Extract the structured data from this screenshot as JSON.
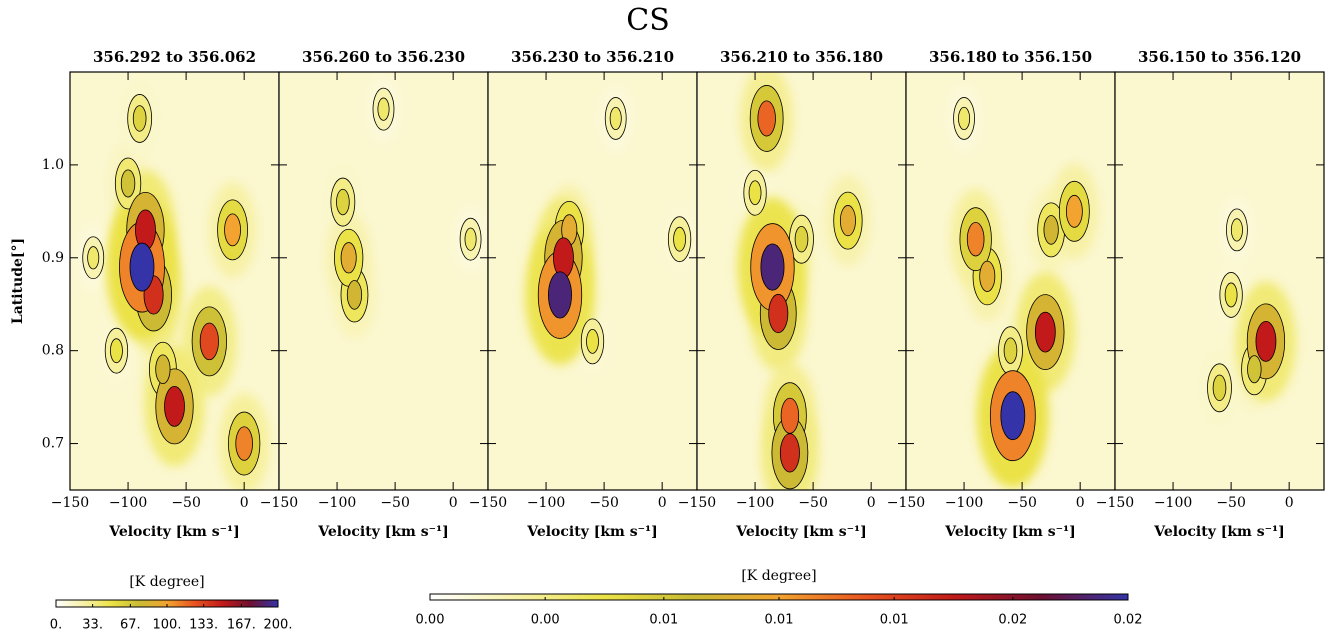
{
  "chart_data": {
    "type": "contour",
    "title": "CS",
    "xlabel": "Velocity [km s⁻¹]",
    "ylabel": "Latitude[°]",
    "xlim": [
      -150,
      30
    ],
    "ylim": [
      0.65,
      1.1
    ],
    "xticks": [
      {
        "value": -150,
        "label": "−150"
      },
      {
        "value": -100,
        "label": "−100"
      },
      {
        "value": -50,
        "label": "−50"
      },
      0
    ],
    "yticks": [
      0.7,
      0.8,
      0.9,
      {
        "value": 1,
        "label": "1.0"
      }
    ],
    "colors": [
      "#ffffff",
      "#f7f1a6",
      "#ebe246",
      "#c9bb34",
      "#f2a330",
      "#e85420",
      "#c21a1a",
      "#6e1030",
      "#3434a8"
    ],
    "panels": [
      {
        "title": "356.292 to 356.062",
        "features": [
          {
            "x": -100,
            "y": 0.98,
            "level": 70
          },
          {
            "x": -110,
            "y": 0.8,
            "level": 50
          },
          {
            "x": -130,
            "y": 0.9,
            "level": 40
          },
          {
            "x": -90,
            "y": 1.05,
            "level": 60
          },
          {
            "x": -70,
            "y": 0.78,
            "level": 80
          },
          {
            "x": -10,
            "y": 0.93,
            "level": 100
          },
          {
            "x": 0,
            "y": 0.7,
            "level": 110
          },
          {
            "x": -30,
            "y": 0.81,
            "level": 130
          },
          {
            "x": -60,
            "y": 0.74,
            "level": 150
          },
          {
            "x": -78,
            "y": 0.86,
            "level": 140
          },
          {
            "x": -85,
            "y": 0.93,
            "level": 150
          },
          {
            "x": -88,
            "y": 0.89,
            "level": 200
          }
        ]
      },
      {
        "title": "356.260 to 356.230",
        "features": [
          {
            "x": -60,
            "y": 1.06,
            "level": 40
          },
          {
            "x": 15,
            "y": 0.92,
            "level": 40
          },
          {
            "x": -95,
            "y": 0.96,
            "level": 60
          },
          {
            "x": -85,
            "y": 0.86,
            "level": 80
          },
          {
            "x": -90,
            "y": 0.9,
            "level": 90
          }
        ]
      },
      {
        "title": "356.230 to 356.210",
        "features": [
          {
            "x": -40,
            "y": 1.05,
            "level": 40
          },
          {
            "x": 15,
            "y": 0.92,
            "level": 50
          },
          {
            "x": -60,
            "y": 0.81,
            "level": 50
          },
          {
            "x": -80,
            "y": 0.93,
            "level": 90
          },
          {
            "x": -85,
            "y": 0.9,
            "level": 150
          },
          {
            "x": -88,
            "y": 0.86,
            "level": 190
          }
        ]
      },
      {
        "title": "356.210 to 356.180",
        "features": [
          {
            "x": -100,
            "y": 0.97,
            "level": 50
          },
          {
            "x": -60,
            "y": 0.92,
            "level": 60
          },
          {
            "x": -20,
            "y": 0.94,
            "level": 90
          },
          {
            "x": -90,
            "y": 1.05,
            "level": 120
          },
          {
            "x": -70,
            "y": 0.73,
            "level": 120
          },
          {
            "x": -70,
            "y": 0.69,
            "level": 140
          },
          {
            "x": -80,
            "y": 0.84,
            "level": 140
          },
          {
            "x": -85,
            "y": 0.89,
            "level": 190
          }
        ]
      },
      {
        "title": "356.180 to 356.150",
        "features": [
          {
            "x": -100,
            "y": 1.05,
            "level": 40
          },
          {
            "x": -60,
            "y": 0.8,
            "level": 60
          },
          {
            "x": -25,
            "y": 0.93,
            "level": 80
          },
          {
            "x": -80,
            "y": 0.88,
            "level": 90
          },
          {
            "x": -5,
            "y": 0.95,
            "level": 100
          },
          {
            "x": -90,
            "y": 0.92,
            "level": 110
          },
          {
            "x": -30,
            "y": 0.82,
            "level": 150
          },
          {
            "x": -58,
            "y": 0.73,
            "level": 200
          }
        ]
      },
      {
        "title": "356.150 to 356.120",
        "features": [
          {
            "x": -45,
            "y": 0.93,
            "level": 40
          },
          {
            "x": -50,
            "y": 0.86,
            "level": 50
          },
          {
            "x": -60,
            "y": 0.76,
            "level": 60
          },
          {
            "x": -30,
            "y": 0.78,
            "level": 70
          },
          {
            "x": -20,
            "y": 0.81,
            "level": 150
          }
        ]
      }
    ],
    "colorbars": [
      {
        "label": "[K degree]",
        "lim": [
          0,
          200
        ],
        "ticks": [
          {
            "value": 0,
            "label": "0."
          },
          {
            "value": 33,
            "label": "33."
          },
          {
            "value": 67,
            "label": "67."
          },
          {
            "value": 100,
            "label": "100."
          },
          {
            "value": 133,
            "label": "133."
          },
          {
            "value": 167,
            "label": "167."
          },
          {
            "value": 200,
            "label": "200."
          }
        ]
      },
      {
        "label": "[K degree]",
        "lim": [
          0,
          0.02
        ],
        "ticks": [
          {
            "value": 0,
            "label": "0.00"
          },
          {
            "value": 0.0033,
            "label": "0.00"
          },
          {
            "value": 0.0067,
            "label": "0.01"
          },
          {
            "value": 0.01,
            "label": "0.01"
          },
          {
            "value": 0.0133,
            "label": "0.01"
          },
          {
            "value": 0.0167,
            "label": "0.02"
          },
          {
            "value": 0.02,
            "label": "0.02"
          }
        ]
      }
    ]
  }
}
